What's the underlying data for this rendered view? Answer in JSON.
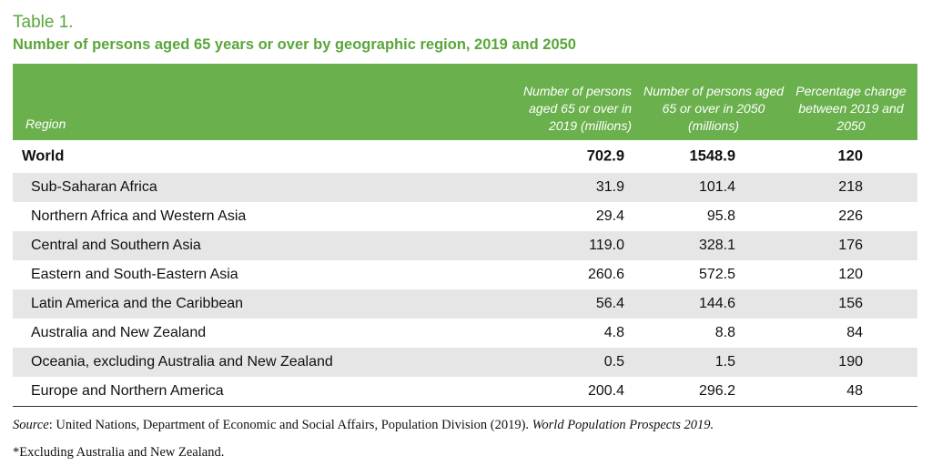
{
  "table_label": "Table 1.",
  "table_title": "Number of persons aged 65 years or over by geographic region, 2019 and 2050",
  "header": {
    "region": "Region",
    "col1": "Number of persons aged 65 or over in 2019  (millions)",
    "col2": "Number of persons aged 65 or over in 2050 (millions)",
    "col3": "Percentage change between 2019 and 2050"
  },
  "colors": {
    "header_bg": "#6ab04c",
    "title": "#5aa63a",
    "row_shade": "#e6e6e6"
  },
  "rows": [
    {
      "region": "World",
      "v2019": "702.9",
      "v2050": "1548.9",
      "pct": "120"
    },
    {
      "region": "Sub-Saharan Africa",
      "v2019": "31.9",
      "v2050": "101.4",
      "pct": "218"
    },
    {
      "region": "Northern Africa and Western Asia",
      "v2019": "29.4",
      "v2050": "95.8",
      "pct": "226"
    },
    {
      "region": "Central and Southern Asia",
      "v2019": "119.0",
      "v2050": "328.1",
      "pct": "176"
    },
    {
      "region": "Eastern and South-Eastern Asia",
      "v2019": "260.6",
      "v2050": "572.5",
      "pct": "120"
    },
    {
      "region": "Latin America and the Caribbean",
      "v2019": "56.4",
      "v2050": "144.6",
      "pct": "156"
    },
    {
      "region": "Australia and New Zealand",
      "v2019": "4.8",
      "v2050": "8.8",
      "pct": "84"
    },
    {
      "region": "Oceania, excluding Australia and New Zealand",
      "v2019": "0.5",
      "v2050": "1.5",
      "pct": "190"
    },
    {
      "region": "Europe and Northern America",
      "v2019": "200.4",
      "v2050": "296.2",
      "pct": "48"
    }
  ],
  "source": {
    "label": "Source",
    "text": ": United Nations, Department of Economic and Social Affairs, Population Division (2019). ",
    "publication": "World Population Prospects 2019."
  },
  "footnote": "*Excluding Australia and New Zealand."
}
